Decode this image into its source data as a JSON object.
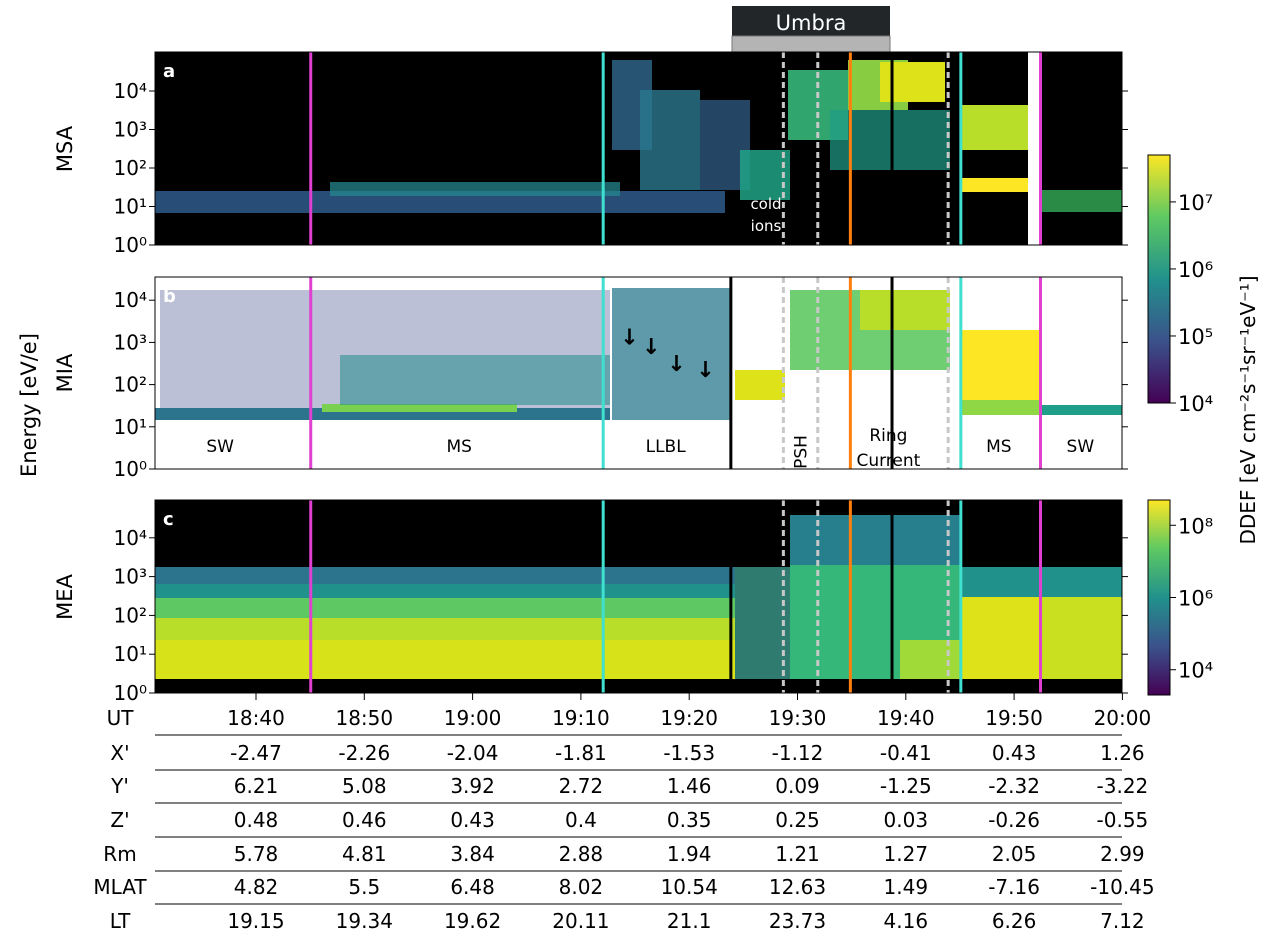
{
  "umbra_label": "Umbra",
  "ylabel": "Energy [eV/e]",
  "ytick_labels": [
    "10⁰",
    "10¹",
    "10²",
    "10³",
    "10⁴"
  ],
  "time_ticks": [
    "18:40",
    "18:50",
    "19:00",
    "19:10",
    "19:20",
    "19:30",
    "19:40",
    "19:50",
    "20:00"
  ],
  "colorbar_label": "DDEF [eV cm⁻²s⁻¹sr⁻¹eV⁻¹]",
  "colorbars": [
    {
      "name": "ion-colorbar",
      "ticks": [
        "10⁴",
        "10⁵",
        "10⁶",
        "10⁷"
      ],
      "exponents": [
        4,
        5,
        6,
        7
      ],
      "range": [
        4,
        7.7
      ]
    },
    {
      "name": "electron-colorbar",
      "ticks": [
        "10⁴",
        "10⁶",
        "10⁸"
      ],
      "exponents": [
        4,
        6,
        8
      ],
      "range": [
        3.3,
        8.7
      ]
    }
  ],
  "panels": [
    {
      "letter": "a",
      "name": "MSA",
      "lines": [
        {
          "time": "18:45:20",
          "color": "#e040d0",
          "dashed": false
        },
        {
          "time": "19:12:15",
          "color": "#40e0d0",
          "dashed": false
        },
        {
          "time": "19:28:50",
          "color": "#c8c8c8",
          "dashed": true
        },
        {
          "time": "19:32:00",
          "color": "#c8c8c8",
          "dashed": true
        },
        {
          "time": "19:35:00",
          "color": "#ff7f0e",
          "dashed": false
        },
        {
          "time": "19:38:50",
          "color": "#000000",
          "dashed": false
        },
        {
          "time": "19:44:00",
          "color": "#c8c8c8",
          "dashed": true
        },
        {
          "time": "19:45:10",
          "color": "#40e0d0",
          "dashed": false
        },
        {
          "time": "19:52:30",
          "color": "#e040d0",
          "dashed": false
        }
      ]
    },
    {
      "letter": "b",
      "name": "MIA",
      "lines": [
        {
          "time": "18:45:20",
          "color": "#e040d0",
          "dashed": false
        },
        {
          "time": "19:12:15",
          "color": "#40e0d0",
          "dashed": false
        },
        {
          "time": "19:24:00",
          "color": "#000000",
          "dashed": false
        },
        {
          "time": "19:28:50",
          "color": "#c8c8c8",
          "dashed": true
        },
        {
          "time": "19:32:00",
          "color": "#c8c8c8",
          "dashed": true
        },
        {
          "time": "19:35:00",
          "color": "#ff7f0e",
          "dashed": false
        },
        {
          "time": "19:38:50",
          "color": "#000000",
          "dashed": false
        },
        {
          "time": "19:44:00",
          "color": "#c8c8c8",
          "dashed": true
        },
        {
          "time": "19:45:10",
          "color": "#40e0d0",
          "dashed": false
        },
        {
          "time": "19:52:30",
          "color": "#e040d0",
          "dashed": false
        }
      ]
    },
    {
      "letter": "c",
      "name": "MEA",
      "lines": [
        {
          "time": "18:45:20",
          "color": "#e040d0",
          "dashed": false
        },
        {
          "time": "19:12:15",
          "color": "#40e0d0",
          "dashed": false
        },
        {
          "time": "19:24:00",
          "color": "#000000",
          "dashed": false
        },
        {
          "time": "19:28:50",
          "color": "#c8c8c8",
          "dashed": true
        },
        {
          "time": "19:32:00",
          "color": "#c8c8c8",
          "dashed": true
        },
        {
          "time": "19:35:00",
          "color": "#ff7f0e",
          "dashed": false
        },
        {
          "time": "19:38:50",
          "color": "#000000",
          "dashed": false
        },
        {
          "time": "19:44:00",
          "color": "#c8c8c8",
          "dashed": true
        },
        {
          "time": "19:45:10",
          "color": "#40e0d0",
          "dashed": false
        },
        {
          "time": "19:52:30",
          "color": "#e040d0",
          "dashed": false
        }
      ]
    }
  ],
  "annotations": {
    "cold_ions_line1": "cold",
    "cold_ions_line2": "ions",
    "regions": [
      {
        "label": "SW",
        "time": "18:37:00"
      },
      {
        "label": "MS",
        "time": "18:59:00"
      },
      {
        "label": "LLBL",
        "time": "19:18:00"
      },
      {
        "label": "PSH",
        "time": "19:30:20",
        "rotated": true
      },
      {
        "label": "Ring",
        "time": "19:38:30"
      },
      {
        "label": "Current",
        "time": "19:38:30"
      },
      {
        "label": "MS",
        "time": "19:48:40"
      },
      {
        "label": "SW",
        "time": "19:56:10"
      }
    ],
    "arrows": [
      {
        "time": "19:14:40",
        "energy_exp": 2.95
      },
      {
        "time": "19:16:40",
        "energy_exp": 2.72
      },
      {
        "time": "19:19:00",
        "energy_exp": 2.32
      },
      {
        "time": "19:21:40",
        "energy_exp": 2.18
      }
    ]
  },
  "ephemeris": {
    "row_labels": [
      "UT",
      "X'",
      "Y'",
      "Z'",
      "Rm",
      "MLAT",
      "LT"
    ],
    "rows": [
      [
        "-2.47",
        "-2.26",
        "-2.04",
        "-1.81",
        "-1.53",
        "-1.12",
        "-0.41",
        "0.43",
        "1.26"
      ],
      [
        "6.21",
        "5.08",
        "3.92",
        "2.72",
        "1.46",
        "0.09",
        "-1.25",
        "-2.32",
        "-3.22"
      ],
      [
        "0.48",
        "0.46",
        "0.43",
        "0.4",
        "0.35",
        "0.25",
        "0.03",
        "-0.26",
        "-0.55"
      ],
      [
        "5.78",
        "4.81",
        "3.84",
        "2.88",
        "1.94",
        "1.21",
        "1.27",
        "2.05",
        "2.99"
      ],
      [
        "4.82",
        "5.5",
        "6.48",
        "8.02",
        "10.54",
        "12.63",
        "1.49",
        "-7.16",
        "-10.45"
      ],
      [
        "19.15",
        "19.34",
        "19.62",
        "20.11",
        "21.1",
        "23.73",
        "4.16",
        "6.26",
        "7.12"
      ]
    ]
  },
  "chart_data": {
    "type": "heatmap",
    "x_label": "UT",
    "x_range": [
      "18:31:00",
      "20:00:00"
    ],
    "y_scale": "log",
    "y_range_eV": [
      1,
      40000
    ],
    "ylabel": "Energy [eV/e]",
    "colorbar_label": "DDEF [eV cm⁻²s⁻¹sr⁻¹eV⁻¹]",
    "umbra_interval": [
      "19:24:00",
      "19:38:50"
    ],
    "panels": [
      "MSA",
      "MIA",
      "MEA"
    ],
    "legend": "none",
    "grid": false
  }
}
